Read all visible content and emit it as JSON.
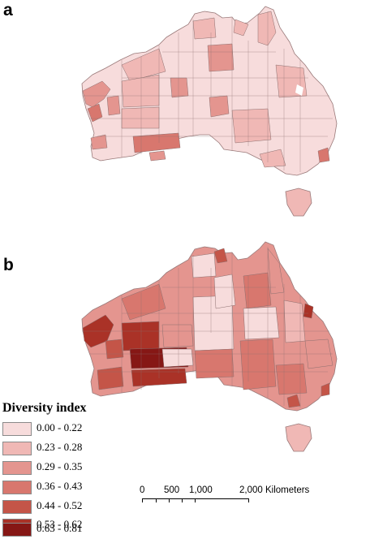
{
  "panels": [
    {
      "label": "a"
    },
    {
      "label": "b"
    }
  ],
  "legend": {
    "title": "Diversity index",
    "classes": [
      {
        "range": "0.00 - 0.22",
        "color": "#f7dcdc"
      },
      {
        "range": "0.23 - 0.28",
        "color": "#f0b8b5"
      },
      {
        "range": "0.29 - 0.35",
        "color": "#e4958f"
      },
      {
        "range": "0.36 - 0.43",
        "color": "#d8776e"
      },
      {
        "range": "0.44 - 0.52",
        "color": "#c45548"
      },
      {
        "range": "0.53 - 0.62",
        "color": "#aa3227"
      },
      {
        "range": "0.63 - 0.81",
        "color": "#861715"
      }
    ]
  },
  "scale_bar": {
    "labels": [
      "0",
      "500",
      "1,000",
      "2,000 Kilometers"
    ]
  },
  "colors": {
    "boundary": "#8c6f6f",
    "outline": "#9a7a7a"
  }
}
